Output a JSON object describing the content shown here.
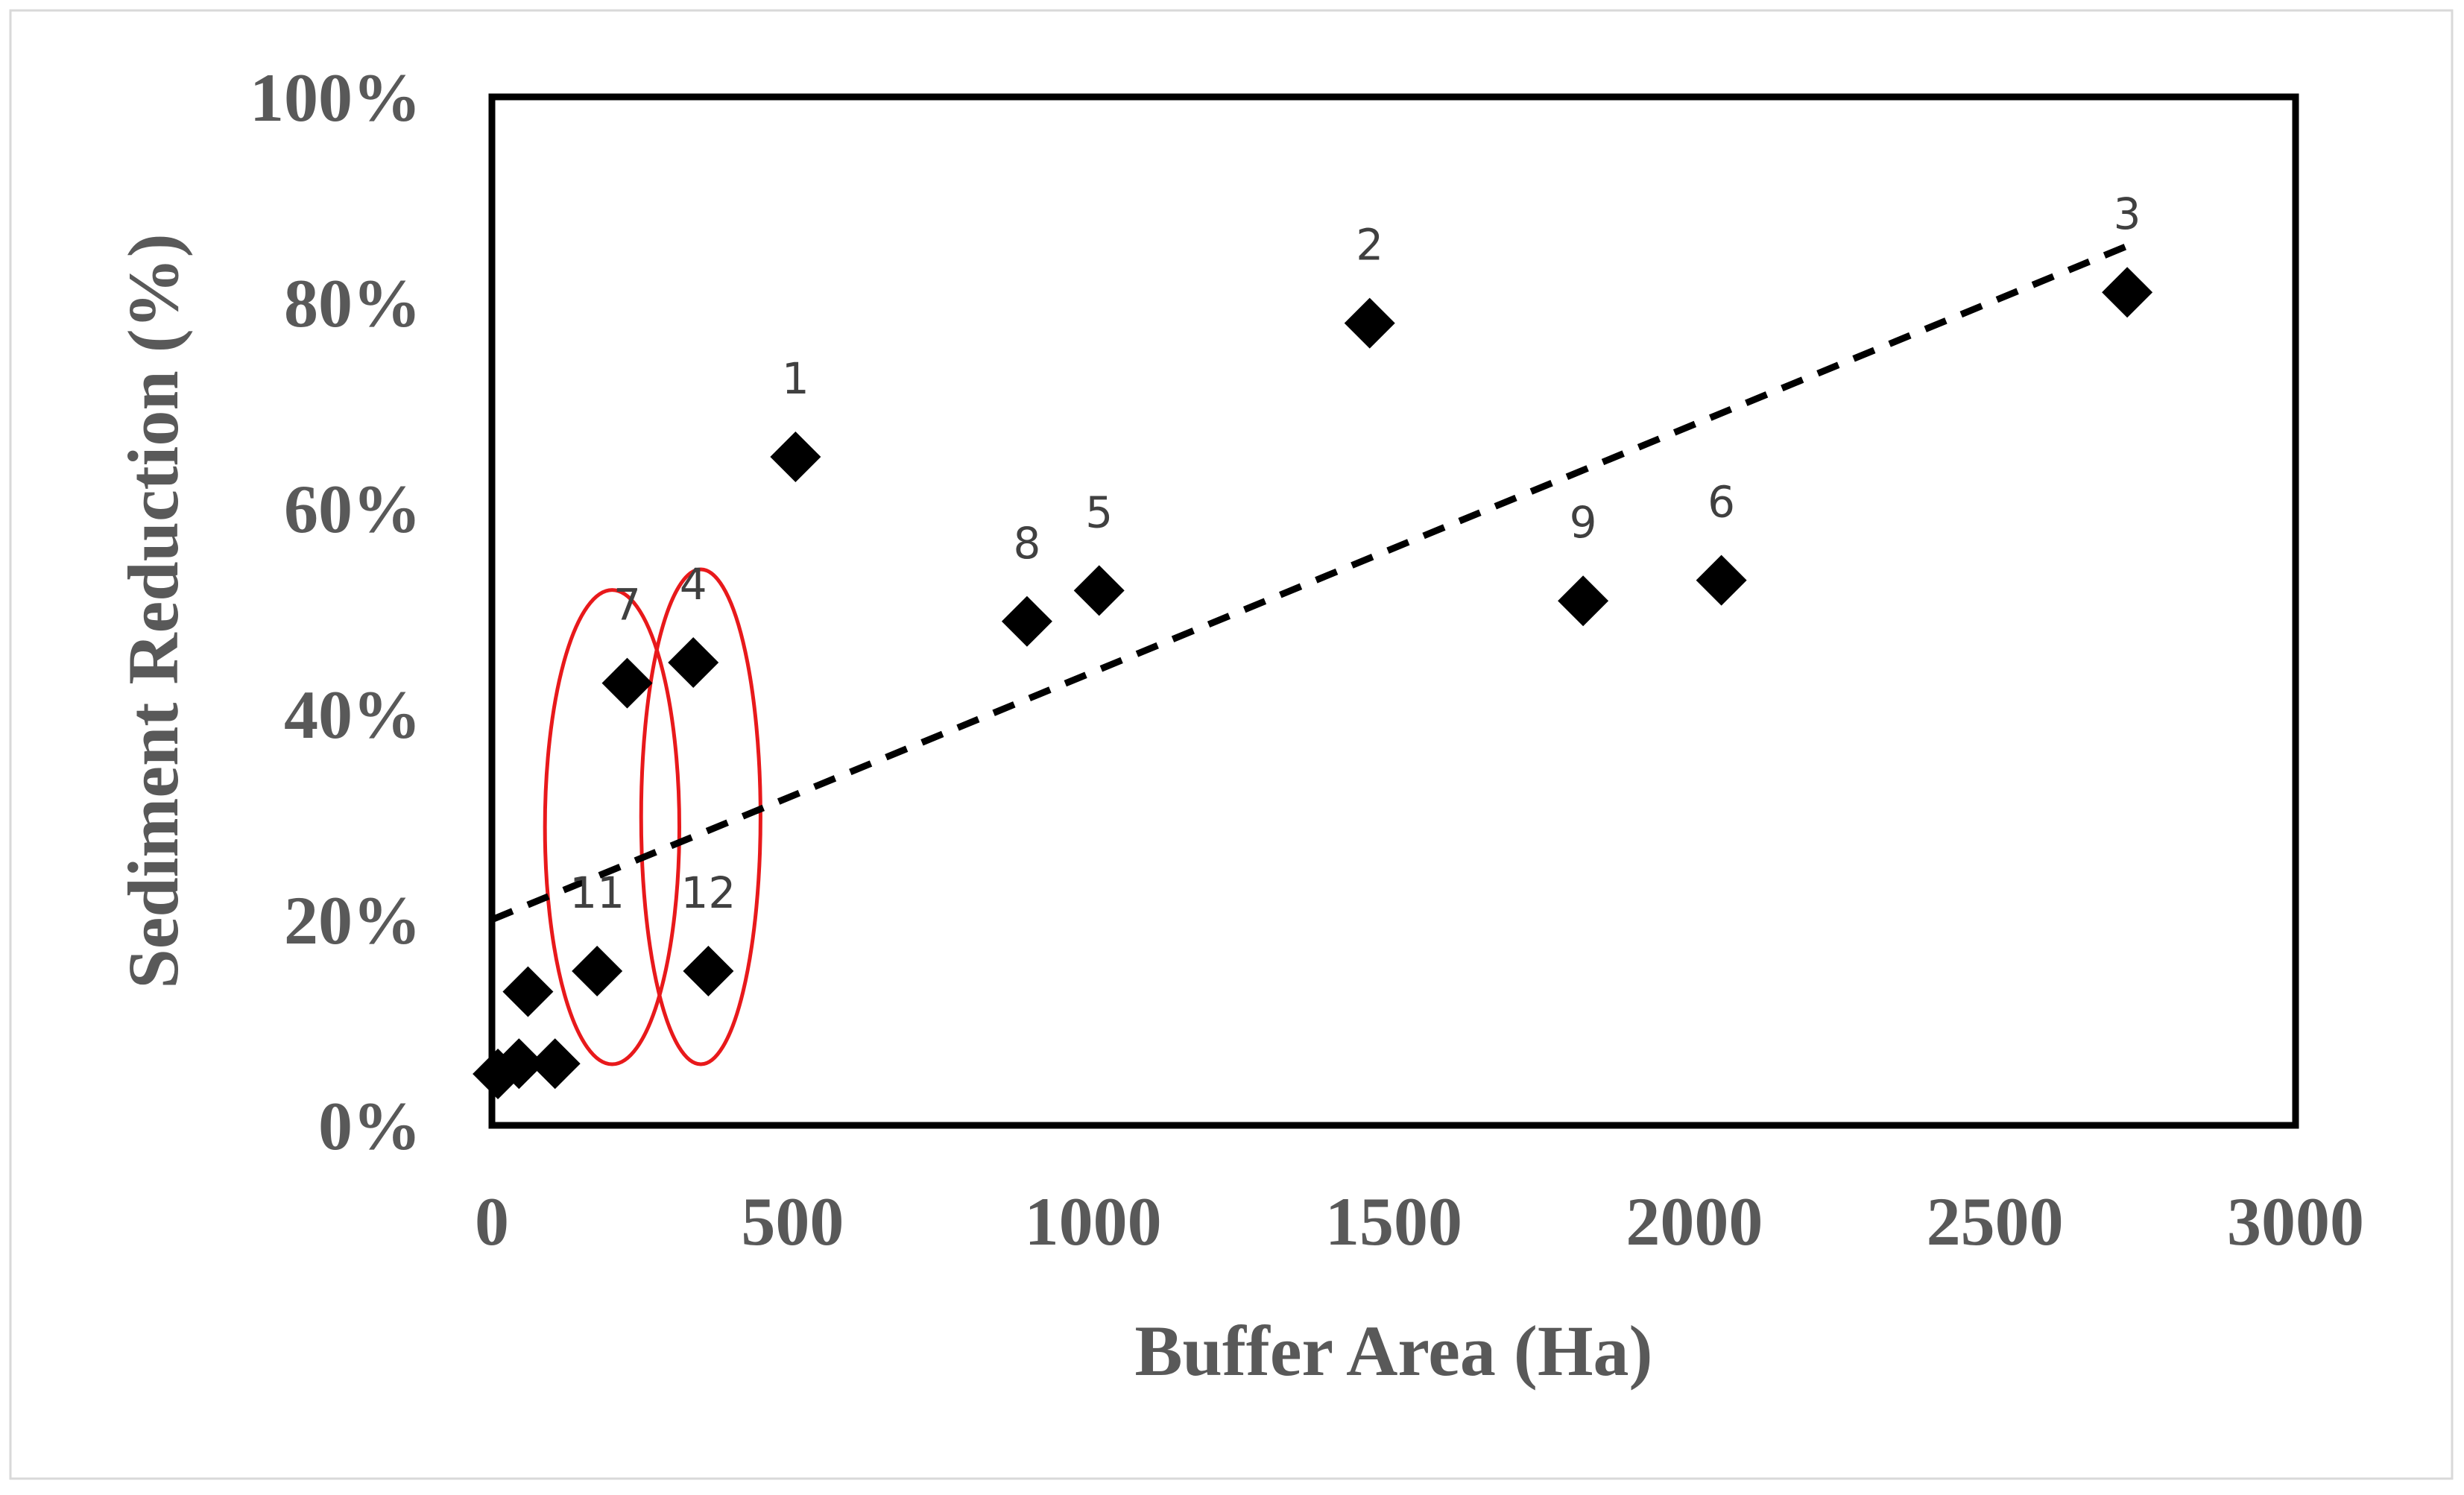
{
  "chart_data": {
    "type": "scatter",
    "title": "",
    "xlabel": "Buffer Area (Ha)",
    "ylabel": "Sediment Reduction (%)",
    "xlim": [
      0,
      3000
    ],
    "ylim": [
      0,
      1.0
    ],
    "x_ticks": [
      "0",
      "500",
      "1000",
      "1500",
      "2000",
      "2500",
      "3000"
    ],
    "y_ticks": [
      "0%",
      "20%",
      "40%",
      "60%",
      "80%",
      "100%"
    ],
    "grid": false,
    "legend": "none",
    "marker": "diamond",
    "marker_color": "#000000",
    "points": [
      {
        "label": "1",
        "x": 505,
        "y": 0.65
      },
      {
        "label": "2",
        "x": 1460,
        "y": 0.78
      },
      {
        "label": "3",
        "x": 2720,
        "y": 0.81
      },
      {
        "label": "4",
        "x": 335,
        "y": 0.45
      },
      {
        "label": "5",
        "x": 1010,
        "y": 0.52
      },
      {
        "label": "6",
        "x": 2045,
        "y": 0.53
      },
      {
        "label": "7",
        "x": 225,
        "y": 0.43
      },
      {
        "label": "8",
        "x": 890,
        "y": 0.49
      },
      {
        "label": "9",
        "x": 1815,
        "y": 0.51
      },
      {
        "label": "11",
        "x": 175,
        "y": 0.15
      },
      {
        "label": "12",
        "x": 360,
        "y": 0.15
      },
      {
        "label": "",
        "x": 60,
        "y": 0.13
      },
      {
        "label": "",
        "x": 10,
        "y": 0.05
      },
      {
        "label": "",
        "x": 45,
        "y": 0.06
      },
      {
        "label": "",
        "x": 105,
        "y": 0.06
      }
    ],
    "trendline": {
      "style": "dashed",
      "color": "#000000",
      "x": [
        0,
        2720
      ],
      "y": [
        0.2,
        0.855
      ]
    },
    "highlight_ellipses": [
      {
        "color": "#e8191b",
        "encloses": [
          "7",
          "11"
        ]
      },
      {
        "color": "#e8191b",
        "encloses": [
          "4",
          "12"
        ]
      }
    ]
  }
}
